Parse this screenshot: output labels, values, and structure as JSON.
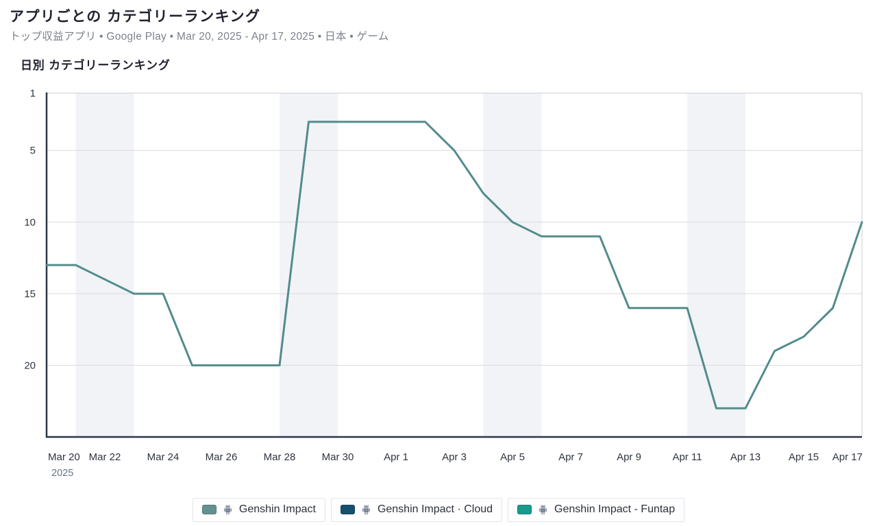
{
  "header": {
    "title": "アプリごとの カテゴリーランキング",
    "subtitle": "トップ収益アプリ • Google Play • Mar 20, 2025 - Apr 17, 2025 • 日本 • ゲーム"
  },
  "chart": {
    "title": "日別 カテゴリーランキング"
  },
  "chart_data": {
    "type": "line",
    "title": "日別 カテゴリーランキング",
    "x": [
      "Mar 20",
      "Mar 21",
      "Mar 22",
      "Mar 23",
      "Mar 24",
      "Mar 25",
      "Mar 26",
      "Mar 27",
      "Mar 28",
      "Mar 29",
      "Mar 30",
      "Mar 31",
      "Apr 1",
      "Apr 2",
      "Apr 3",
      "Apr 4",
      "Apr 5",
      "Apr 6",
      "Apr 7",
      "Apr 8",
      "Apr 9",
      "Apr 10",
      "Apr 11",
      "Apr 12",
      "Apr 13",
      "Apr 14",
      "Apr 15",
      "Apr 16",
      "Apr 17"
    ],
    "series": [
      {
        "name": "Genshin Impact",
        "color": "#538b8b",
        "values": [
          13,
          13,
          14,
          15,
          15,
          20,
          20,
          20,
          20,
          3,
          3,
          3,
          3,
          3,
          5,
          8,
          10,
          11,
          11,
          11,
          16,
          16,
          16,
          23,
          23,
          19,
          18,
          16,
          10
        ]
      },
      {
        "name": "Genshin Impact · Cloud",
        "color": "#15506e",
        "values": []
      },
      {
        "name": "Genshin Impact - Funtap",
        "color": "#189a8c",
        "values": []
      }
    ],
    "xlabel": "",
    "ylabel": "",
    "y_axis_inverted": true,
    "ylim": [
      1,
      25
    ],
    "y_ticks": [
      1,
      5,
      10,
      15,
      20
    ],
    "x_tick_labels": [
      "Mar 20",
      "Mar 22",
      "Mar 24",
      "Mar 26",
      "Mar 28",
      "Mar 30",
      "Apr 1",
      "Apr 3",
      "Apr 5",
      "Apr 7",
      "Apr 9",
      "Apr 11",
      "Apr 13",
      "Apr 15",
      "Apr 17"
    ],
    "year_label": "2025",
    "weekend_bands": [
      [
        1,
        3
      ],
      [
        8,
        10
      ],
      [
        15,
        17
      ],
      [
        22,
        24
      ]
    ],
    "band_color": "#f1f3f6",
    "grid_color": "#d9dade",
    "border_color": "#c9cdd6",
    "axis_color": "#2b3648",
    "legend_position": "bottom",
    "grid": "horizontal-only"
  },
  "legend": {
    "items": [
      {
        "label": "Genshin Impact",
        "color": "#649090",
        "platform_icon": "android-icon"
      },
      {
        "label": "Genshin Impact · Cloud",
        "color": "#15506e",
        "platform_icon": "android-icon"
      },
      {
        "label": "Genshin Impact - Funtap",
        "color": "#189a8c",
        "platform_icon": "android-icon"
      }
    ]
  }
}
